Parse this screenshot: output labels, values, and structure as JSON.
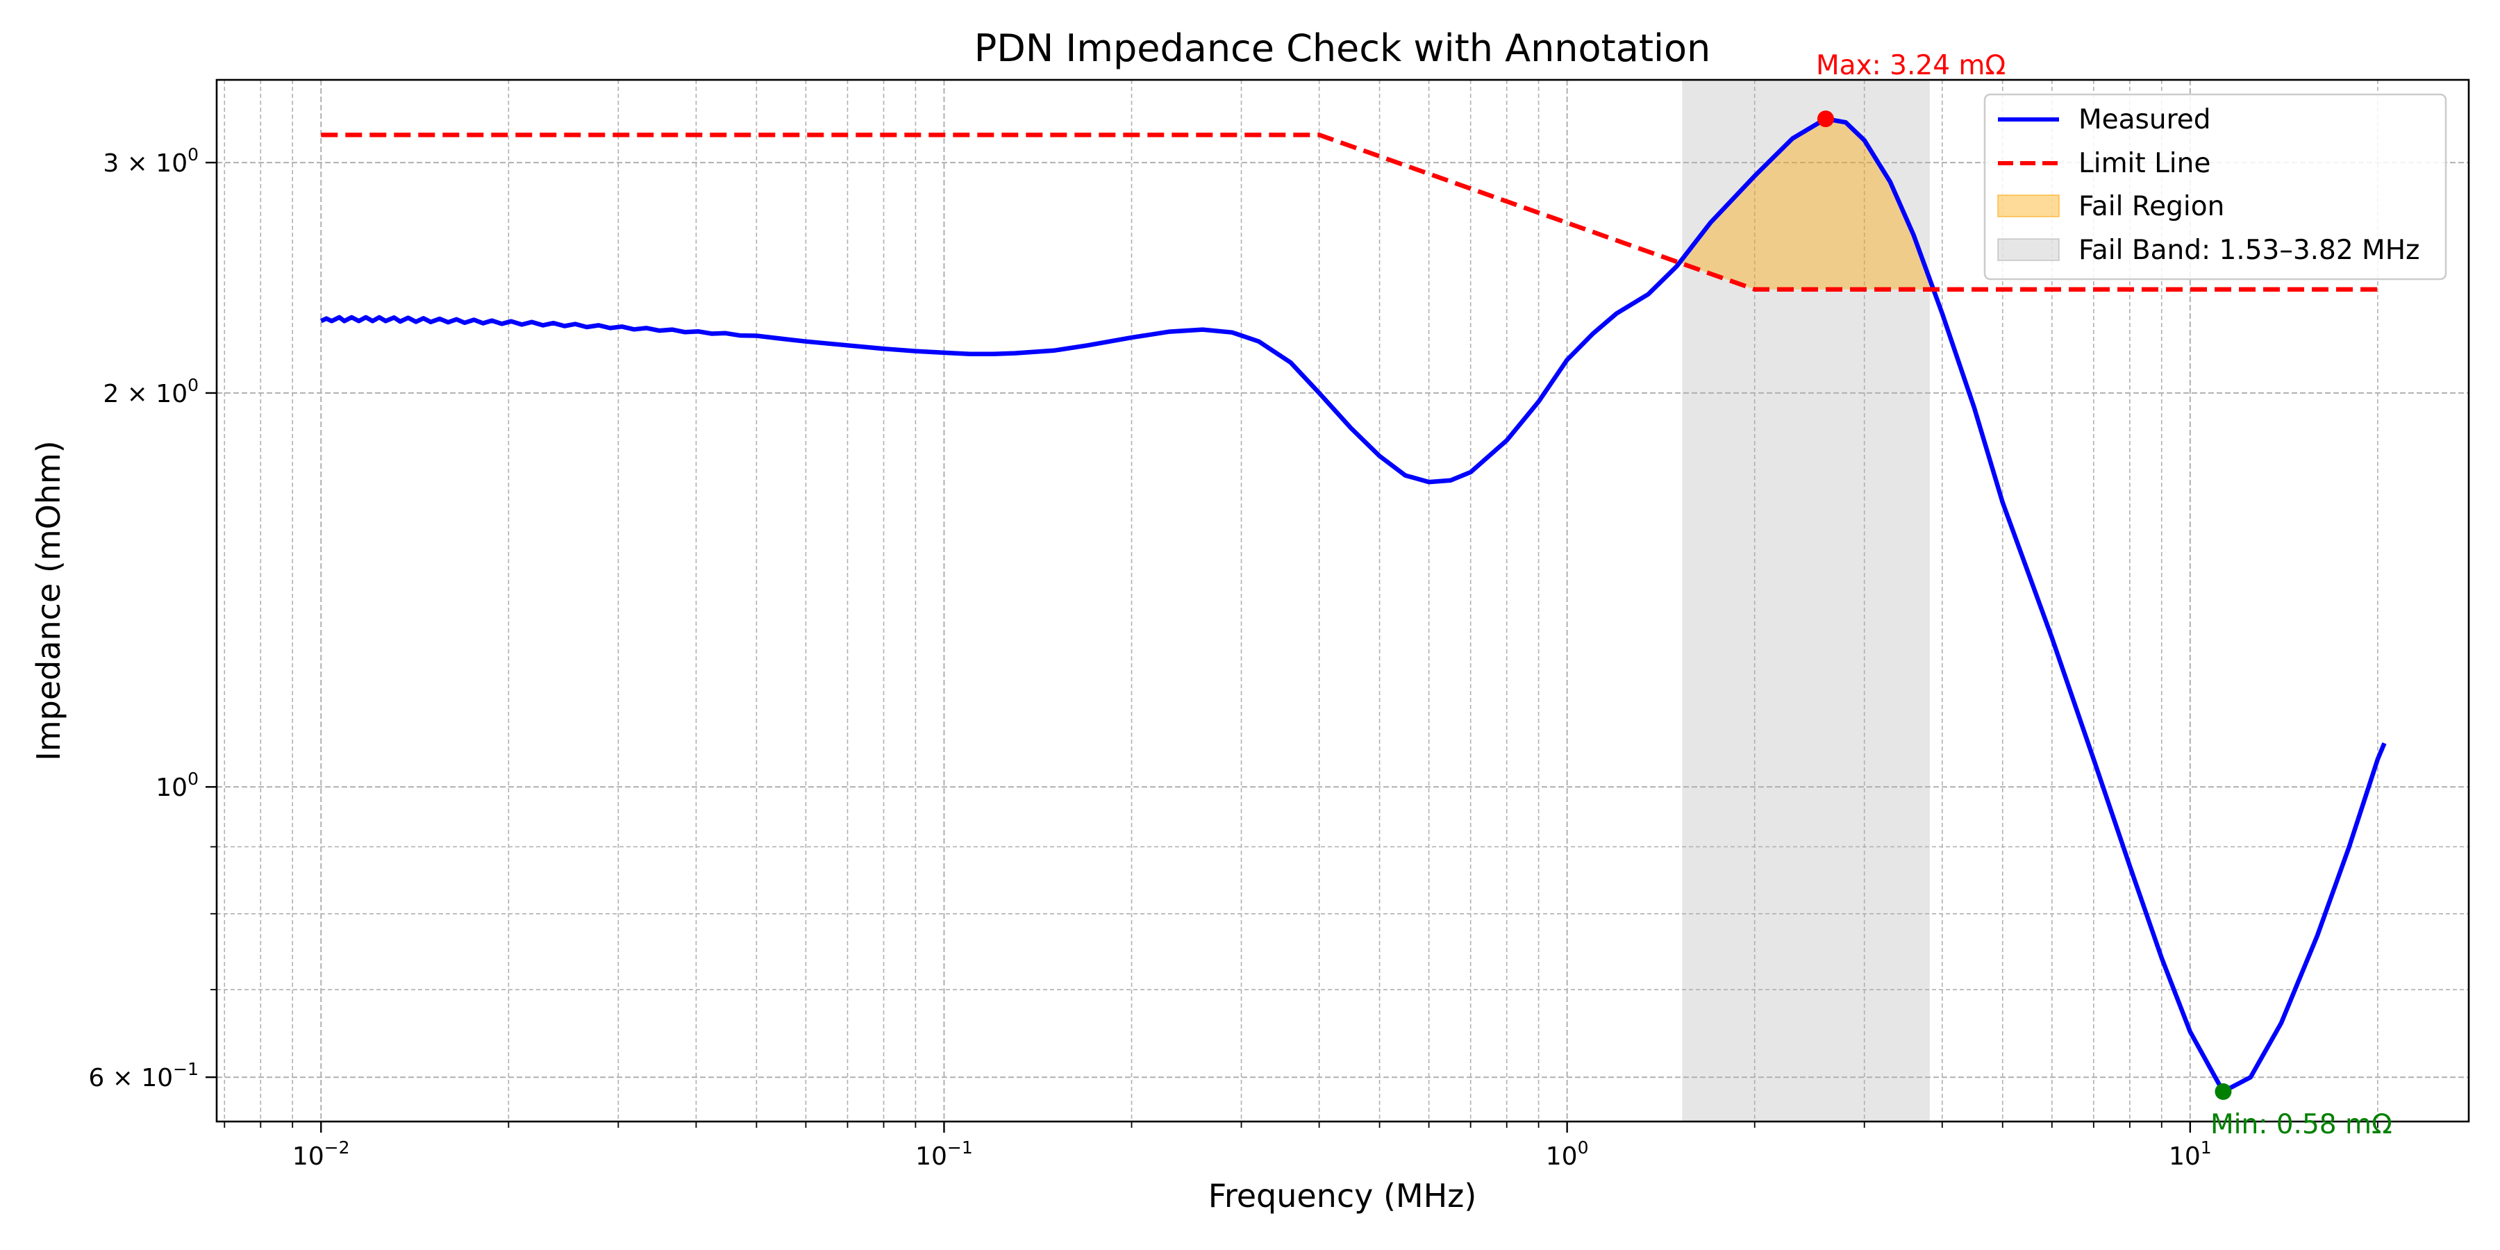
{
  "chart_data": {
    "type": "line",
    "title": "PDN Impedance Check with Annotation",
    "xlabel": "Frequency (MHz)",
    "ylabel": "Impedance (mOhm)",
    "x_scale": "log",
    "y_scale": "log",
    "xlim": [
      0.0068,
      28
    ],
    "ylim": [
      0.555,
      3.47
    ],
    "grid": true,
    "legend_position": "top-right",
    "x_ticks": [
      {
        "value": 0.01,
        "base": "10",
        "exp": "−2"
      },
      {
        "value": 0.1,
        "base": "10",
        "exp": "−1"
      },
      {
        "value": 1,
        "base": "10",
        "exp": "0"
      },
      {
        "value": 10,
        "base": "10",
        "exp": "1"
      }
    ],
    "y_ticks": [
      {
        "value": 0.6,
        "base": "6 × 10",
        "exp": "−1"
      },
      {
        "value": 1,
        "base": "10",
        "exp": "0"
      },
      {
        "value": 2,
        "base": "2 × 10",
        "exp": "0"
      },
      {
        "value": 3,
        "base": "3 × 10",
        "exp": "0"
      }
    ],
    "series": [
      {
        "name": "Measured",
        "color": "#0000ff",
        "style": "solid",
        "points": [
          [
            0.01,
            2.27
          ],
          [
            0.0102,
            2.28
          ],
          [
            0.0104,
            2.27
          ],
          [
            0.0107,
            2.285
          ],
          [
            0.0109,
            2.27
          ],
          [
            0.0112,
            2.285
          ],
          [
            0.0115,
            2.27
          ],
          [
            0.0118,
            2.285
          ],
          [
            0.0121,
            2.27
          ],
          [
            0.0124,
            2.285
          ],
          [
            0.0127,
            2.27
          ],
          [
            0.0131,
            2.284
          ],
          [
            0.0134,
            2.268
          ],
          [
            0.0138,
            2.283
          ],
          [
            0.0142,
            2.267
          ],
          [
            0.0146,
            2.281
          ],
          [
            0.015,
            2.266
          ],
          [
            0.0155,
            2.279
          ],
          [
            0.016,
            2.265
          ],
          [
            0.0165,
            2.277
          ],
          [
            0.017,
            2.263
          ],
          [
            0.0176,
            2.275
          ],
          [
            0.0182,
            2.261
          ],
          [
            0.0188,
            2.272
          ],
          [
            0.0195,
            2.259
          ],
          [
            0.0202,
            2.269
          ],
          [
            0.021,
            2.256
          ],
          [
            0.0218,
            2.266
          ],
          [
            0.0227,
            2.253
          ],
          [
            0.0236,
            2.262
          ],
          [
            0.0246,
            2.25
          ],
          [
            0.0256,
            2.258
          ],
          [
            0.0267,
            2.246
          ],
          [
            0.0279,
            2.253
          ],
          [
            0.0291,
            2.242
          ],
          [
            0.0304,
            2.248
          ],
          [
            0.0318,
            2.237
          ],
          [
            0.0333,
            2.242
          ],
          [
            0.0349,
            2.232
          ],
          [
            0.0366,
            2.236
          ],
          [
            0.0384,
            2.226
          ],
          [
            0.0403,
            2.229
          ],
          [
            0.0424,
            2.22
          ],
          [
            0.0446,
            2.222
          ],
          [
            0.047,
            2.213
          ],
          [
            0.05,
            2.212
          ],
          [
            0.055,
            2.2
          ],
          [
            0.06,
            2.19
          ],
          [
            0.07,
            2.175
          ],
          [
            0.08,
            2.162
          ],
          [
            0.09,
            2.153
          ],
          [
            0.1,
            2.147
          ],
          [
            0.11,
            2.142
          ],
          [
            0.12,
            2.142
          ],
          [
            0.13,
            2.145
          ],
          [
            0.15,
            2.155
          ],
          [
            0.17,
            2.175
          ],
          [
            0.2,
            2.205
          ],
          [
            0.23,
            2.228
          ],
          [
            0.26,
            2.236
          ],
          [
            0.29,
            2.225
          ],
          [
            0.32,
            2.19
          ],
          [
            0.36,
            2.11
          ],
          [
            0.4,
            2.0
          ],
          [
            0.45,
            1.88
          ],
          [
            0.5,
            1.79
          ],
          [
            0.55,
            1.73
          ],
          [
            0.6,
            1.71
          ],
          [
            0.65,
            1.715
          ],
          [
            0.7,
            1.74
          ],
          [
            0.8,
            1.84
          ],
          [
            0.9,
            1.97
          ],
          [
            1.0,
            2.12
          ],
          [
            1.1,
            2.22
          ],
          [
            1.2,
            2.3
          ],
          [
            1.35,
            2.38
          ],
          [
            1.5,
            2.5
          ],
          [
            1.7,
            2.7
          ],
          [
            2.0,
            2.93
          ],
          [
            2.3,
            3.13
          ],
          [
            2.6,
            3.24
          ],
          [
            2.8,
            3.22
          ],
          [
            3.0,
            3.12
          ],
          [
            3.3,
            2.9
          ],
          [
            3.6,
            2.64
          ],
          [
            4.0,
            2.3
          ],
          [
            4.5,
            1.95
          ],
          [
            5.0,
            1.65
          ],
          [
            6.0,
            1.3
          ],
          [
            7.0,
            1.05
          ],
          [
            8.0,
            0.87
          ],
          [
            9.0,
            0.74
          ],
          [
            10.0,
            0.65
          ],
          [
            11.3,
            0.585
          ],
          [
            12.5,
            0.6
          ],
          [
            14.0,
            0.66
          ],
          [
            16.0,
            0.77
          ],
          [
            18.0,
            0.9
          ],
          [
            20.0,
            1.05
          ],
          [
            20.5,
            1.08
          ]
        ]
      },
      {
        "name": "Limit Line",
        "color": "#ff0000",
        "style": "dashed",
        "points": [
          [
            0.01,
            3.15
          ],
          [
            0.4,
            3.15
          ],
          [
            2.0,
            2.4
          ],
          [
            20.5,
            2.4
          ]
        ]
      }
    ],
    "fail_region": {
      "name": "Fail Region",
      "color": "#ffa500",
      "x_from": 1.53,
      "x_to": 3.82
    },
    "fail_band": {
      "name": "Fail Band: 1.53–3.82 MHz",
      "color": "#808080",
      "x_from": 1.53,
      "x_to": 3.82
    },
    "annotations": [
      {
        "text": "Max: 3.24 mΩ",
        "x": 2.6,
        "y": 3.24,
        "color": "#ff0000"
      },
      {
        "text": "Min: 0.58 mΩ",
        "x": 11.3,
        "y": 0.585,
        "color": "#008000"
      }
    ]
  }
}
